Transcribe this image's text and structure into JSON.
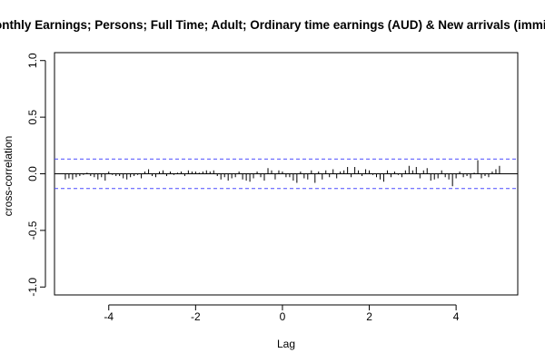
{
  "chart_data": {
    "type": "bar",
    "title": "Monthly Earnings; Persons; Full Time; Adult; Ordinary time earnings (AUD) & New arrivals (immigrants)",
    "xlabel": "Lag",
    "ylabel": "cross-correlation",
    "xlim": [
      -5.25,
      5.42
    ],
    "ylim": [
      -1.07,
      1.07
    ],
    "x_ticks": [
      -4,
      -2,
      0,
      2,
      4
    ],
    "x_tick_labels": [
      "-4",
      "-2",
      "0",
      "2",
      "4"
    ],
    "y_ticks": [
      -1.0,
      -0.5,
      0.0,
      0.5,
      1.0
    ],
    "y_tick_labels": [
      "-1.0",
      "-0.5",
      "0.0",
      "0.5",
      "1.0"
    ],
    "confidence_bound": 0.13,
    "colors": {
      "bars": "#000000",
      "zero_line": "#000000",
      "confidence": "#4a4aff",
      "frame": "#000000"
    },
    "grid": false,
    "series": [
      {
        "x": [
          -5.0,
          -4.917,
          -4.833,
          -4.75,
          -4.667,
          -4.583,
          -4.5,
          -4.417,
          -4.333,
          -4.25,
          -4.167,
          -4.083,
          -4.0,
          -3.917,
          -3.833,
          -3.75,
          -3.667,
          -3.583,
          -3.5,
          -3.417,
          -3.333,
          -3.25,
          -3.167,
          -3.083,
          -3.0,
          -2.917,
          -2.833,
          -2.75,
          -2.667,
          -2.583,
          -2.5,
          -2.417,
          -2.333,
          -2.25,
          -2.167,
          -2.083,
          -2.0,
          -1.917,
          -1.833,
          -1.75,
          -1.667,
          -1.583,
          -1.5,
          -1.417,
          -1.333,
          -1.25,
          -1.167,
          -1.083,
          -1.0,
          -0.917,
          -0.833,
          -0.75,
          -0.667,
          -0.583,
          -0.5,
          -0.417,
          -0.333,
          -0.25,
          -0.167,
          -0.083,
          0.0,
          0.083,
          0.167,
          0.25,
          0.333,
          0.417,
          0.5,
          0.583,
          0.667,
          0.75,
          0.833,
          0.917,
          1.0,
          1.083,
          1.167,
          1.25,
          1.333,
          1.417,
          1.5,
          1.583,
          1.667,
          1.75,
          1.833,
          1.917,
          2.0,
          2.083,
          2.167,
          2.25,
          2.333,
          2.417,
          2.5,
          2.583,
          2.667,
          2.75,
          2.833,
          2.917,
          3.0,
          3.083,
          3.167,
          3.25,
          3.333,
          3.417,
          3.5,
          3.583,
          3.667,
          3.75,
          3.833,
          3.917,
          4.0,
          4.083,
          4.167,
          4.25,
          4.333,
          4.417,
          4.5,
          4.583,
          4.667,
          4.75,
          4.833,
          4.917,
          5.0
        ],
        "values": [
          -0.05,
          -0.04,
          -0.05,
          -0.03,
          -0.02,
          -0.01,
          0.01,
          -0.02,
          -0.03,
          -0.05,
          -0.03,
          -0.06,
          0.02,
          -0.01,
          -0.02,
          -0.02,
          -0.04,
          -0.05,
          -0.03,
          -0.02,
          -0.01,
          -0.04,
          0.02,
          0.04,
          -0.02,
          -0.03,
          0.02,
          0.03,
          -0.02,
          0.02,
          -0.01,
          0.01,
          0.02,
          -0.02,
          0.03,
          0.02,
          0.02,
          0.01,
          0.02,
          0.03,
          0.02,
          0.03,
          -0.02,
          -0.05,
          -0.03,
          -0.06,
          -0.04,
          -0.03,
          0.02,
          -0.05,
          -0.06,
          -0.07,
          -0.04,
          0.02,
          -0.03,
          -0.06,
          0.05,
          0.03,
          -0.05,
          0.03,
          0.02,
          -0.03,
          -0.03,
          -0.06,
          -0.08,
          0.02,
          -0.04,
          -0.05,
          0.03,
          -0.08,
          0.02,
          -0.05,
          0.03,
          -0.03,
          0.04,
          -0.04,
          0.02,
          0.03,
          0.06,
          -0.03,
          0.06,
          0.03,
          -0.02,
          0.04,
          0.03,
          -0.01,
          -0.03,
          -0.05,
          -0.07,
          0.03,
          -0.03,
          0.02,
          -0.01,
          -0.03,
          0.03,
          0.07,
          0.03,
          0.06,
          -0.04,
          0.03,
          0.05,
          -0.06,
          -0.05,
          -0.04,
          0.03,
          -0.03,
          -0.05,
          -0.11,
          -0.04,
          0.02,
          -0.03,
          -0.02,
          -0.04,
          0.01,
          0.12,
          -0.04,
          -0.02,
          -0.03,
          0.02,
          0.04,
          0.07
        ]
      }
    ]
  }
}
